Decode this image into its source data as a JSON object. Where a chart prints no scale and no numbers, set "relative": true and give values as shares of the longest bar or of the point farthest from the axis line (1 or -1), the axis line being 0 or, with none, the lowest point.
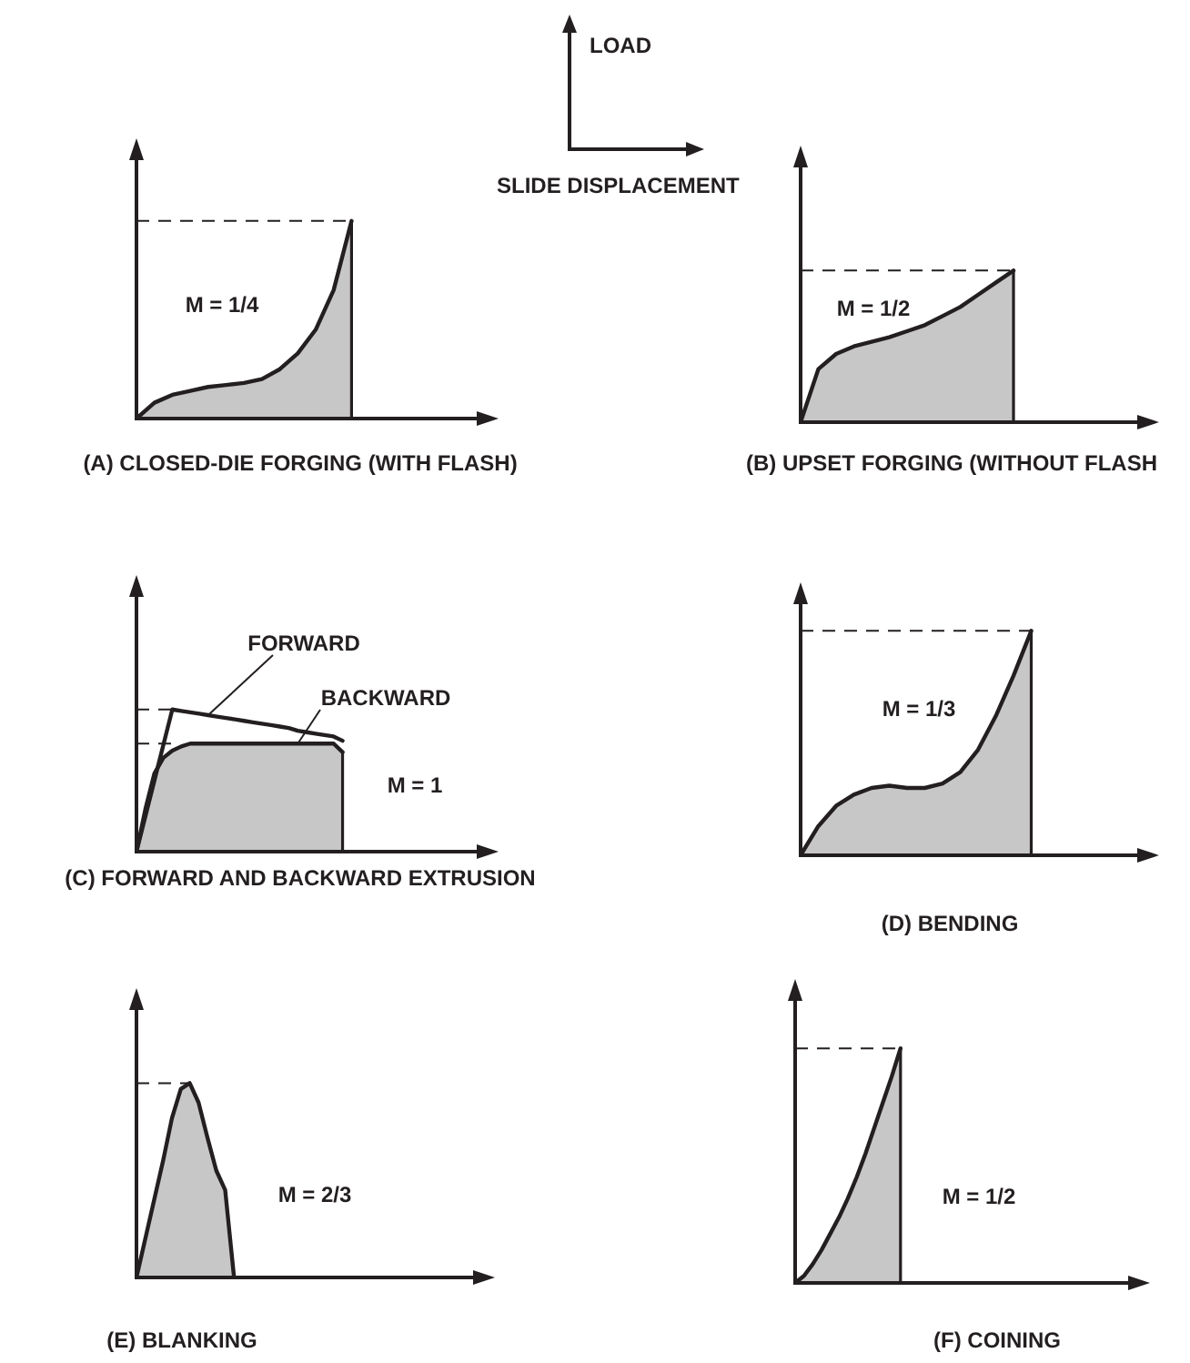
{
  "chart_data": [
    {
      "type": "other",
      "ylabel": "LOAD",
      "xlabel": "SLIDE DISPLACEMENT"
    },
    {
      "type": "area",
      "title": "(A) CLOSED-DIE FORGING (WITH FLASH)",
      "relative": true,
      "annotations": [
        "M = 1/4"
      ],
      "categories": [
        null,
        null,
        null,
        null,
        null,
        null,
        null,
        null,
        null,
        null,
        null,
        null,
        null,
        null,
        null,
        null,
        null,
        null,
        null,
        null,
        null
      ],
      "series": [
        {
          "color": "#231f20",
          "values": [
            0,
            0.08,
            0.12,
            0.14,
            0.16,
            0.17,
            0.18,
            0.2,
            0.25,
            0.33,
            0.45,
            0.65,
            1,
            null,
            null,
            null,
            null,
            null,
            null,
            null,
            null
          ]
        }
      ],
      "ref_lines": [
        {
          "axis": "y",
          "value": 1,
          "line_style": "dashed"
        }
      ]
    },
    {
      "type": "area",
      "title": "(B) UPSET FORGING (WITHOUT FLASH",
      "relative": true,
      "annotations": [
        "M = 1/2"
      ],
      "categories": [
        null,
        null,
        null,
        null,
        null,
        null,
        null,
        null,
        null,
        null,
        null,
        null,
        null,
        null,
        null,
        null,
        null,
        null,
        null,
        null,
        null
      ],
      "series": [
        {
          "color": "#231f20",
          "values": [
            0,
            0.35,
            0.45,
            0.5,
            0.53,
            0.56,
            0.6,
            0.64,
            0.7,
            0.76,
            0.84,
            0.92,
            1,
            null,
            null,
            null,
            null,
            null,
            null,
            null,
            null
          ]
        }
      ],
      "ref_lines": [
        {
          "axis": "y",
          "value": 1,
          "line_style": "dashed"
        }
      ]
    },
    {
      "type": "area",
      "title": "(C) FORWARD AND BACKWARD EXTRUSION",
      "relative": true,
      "annotations": [
        "M = 1"
      ],
      "categories": [
        null,
        null,
        null,
        null,
        null,
        null,
        null,
        null,
        null,
        null,
        null,
        null,
        null,
        null,
        null,
        null,
        null,
        null,
        null,
        null,
        null,
        null,
        null,
        null,
        null,
        null,
        null,
        null,
        null,
        null,
        null,
        null,
        null,
        null,
        null,
        null,
        null,
        null,
        null,
        null,
        null
      ],
      "series": [
        {
          "name": "FORWARD",
          "type": "line",
          "color": "#231f20",
          "values": [
            0,
            0.25,
            0.5,
            0.75,
            1,
            0.99,
            0.98,
            0.97,
            0.96,
            0.95,
            0.94,
            0.93,
            0.92,
            0.91,
            0.9,
            0.89,
            0.88,
            0.87,
            0.85,
            0.84,
            0.83,
            0.82,
            0.81,
            0.78,
            null,
            null,
            null,
            null,
            null,
            null,
            null,
            null,
            null,
            null,
            null,
            null,
            null,
            null,
            null,
            null,
            null
          ]
        },
        {
          "name": "BACKWARD",
          "color": "#231f20",
          "values": [
            0,
            0.3,
            0.55,
            0.66,
            0.71,
            0.74,
            0.76,
            0.76,
            0.76,
            0.76,
            0.76,
            0.76,
            0.76,
            0.76,
            0.76,
            0.76,
            0.76,
            0.76,
            0.76,
            0.76,
            0.76,
            0.76,
            0.76,
            0.7,
            null,
            null,
            null,
            null,
            null,
            null,
            null,
            null,
            null,
            null,
            null,
            null,
            null,
            null,
            null,
            null,
            null
          ]
        }
      ],
      "ref_lines": [
        {
          "axis": "y",
          "value": 1,
          "line_style": "dashed"
        },
        {
          "axis": "y",
          "value": 0.76,
          "line_style": "dashed"
        }
      ]
    },
    {
      "type": "area",
      "title": "(D) BENDING",
      "relative": true,
      "annotations": [
        "M = 1/3"
      ],
      "categories": [
        null,
        null,
        null,
        null,
        null,
        null,
        null,
        null,
        null,
        null,
        null,
        null,
        null,
        null,
        null,
        null,
        null,
        null,
        null,
        null,
        null
      ],
      "series": [
        {
          "color": "#231f20",
          "values": [
            0,
            0.13,
            0.22,
            0.27,
            0.3,
            0.31,
            0.3,
            0.3,
            0.32,
            0.37,
            0.47,
            0.62,
            0.8,
            1,
            null,
            null,
            null,
            null,
            null,
            null,
            null
          ]
        }
      ],
      "ref_lines": [
        {
          "axis": "y",
          "value": 1,
          "line_style": "dashed"
        }
      ]
    },
    {
      "type": "area",
      "title": "(E) BLANKING",
      "relative": true,
      "annotations": [
        "M = 2/3"
      ],
      "categories": [
        null,
        null,
        null,
        null,
        null,
        null,
        null,
        null,
        null,
        null,
        null,
        null,
        null,
        null,
        null,
        null,
        null,
        null,
        null,
        null,
        null,
        null,
        null,
        null,
        null,
        null,
        null,
        null,
        null,
        null,
        null,
        null,
        null,
        null,
        null,
        null,
        null,
        null,
        null,
        null,
        null
      ],
      "series": [
        {
          "color": "#231f20",
          "values": [
            0,
            0.2,
            0.4,
            0.6,
            0.82,
            0.97,
            1,
            0.9,
            0.72,
            0.55,
            0.45,
            0,
            null,
            null,
            null,
            null,
            null,
            null,
            null,
            null,
            null,
            null,
            null,
            null,
            null,
            null,
            null,
            null,
            null,
            null,
            null,
            null,
            null,
            null,
            null,
            null,
            null,
            null,
            null,
            null,
            null
          ]
        }
      ],
      "ref_lines": [
        {
          "axis": "y",
          "value": 1,
          "line_style": "dashed"
        }
      ]
    },
    {
      "type": "area",
      "title": "(F) COINING",
      "relative": true,
      "annotations": [
        "M = 1/2"
      ],
      "categories": [
        null,
        null,
        null,
        null,
        null,
        null,
        null,
        null,
        null,
        null,
        null,
        null,
        null,
        null,
        null,
        null,
        null,
        null,
        null,
        null,
        null,
        null,
        null,
        null,
        null,
        null,
        null,
        null,
        null,
        null,
        null,
        null,
        null,
        null,
        null,
        null,
        null,
        null,
        null,
        null,
        null
      ],
      "series": [
        {
          "color": "#231f20",
          "values": [
            0,
            0.03,
            0.08,
            0.14,
            0.21,
            0.28,
            0.36,
            0.45,
            0.55,
            0.66,
            0.77,
            0.88,
            1,
            null,
            null,
            null,
            null,
            null,
            null,
            null,
            null,
            null,
            null,
            null,
            null,
            null,
            null,
            null,
            null,
            null,
            null,
            null,
            null,
            null,
            null,
            null,
            null,
            null,
            null,
            null,
            null
          ]
        }
      ],
      "ref_lines": [
        {
          "axis": "y",
          "value": 1,
          "line_style": "dashed"
        }
      ]
    }
  ]
}
